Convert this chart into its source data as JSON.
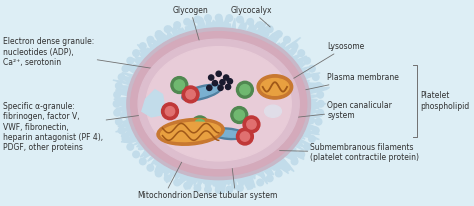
{
  "bg_color": "#ddeef5",
  "glycocalyx_color": "#c2dcea",
  "outer_ring_color": "#c8b8c8",
  "cell_body_color": "#d4aabb",
  "inner_zone_color": "#ddbece",
  "center_color": "#e8ccd8",
  "mito_outer": "#c87830",
  "mito_inner": "#e8a040",
  "mito_ridge": "#a05818",
  "dense_dot_color": "#1a1a2e",
  "red_granule": "#c03838",
  "green_granule_outer": "#508850",
  "green_granule_inner": "#70b870",
  "lysosome_outer": "#c87830",
  "lysosome_inner": "#e8a040",
  "blue_canal": "#5080a0",
  "white_body": "#e0dde8",
  "line_color": "#707070",
  "label_color": "#303030",
  "lfs": 5.5,
  "labels": {
    "glycogen": "Glycogen",
    "glycocalyx": "Glycocalyx",
    "electron_dense": "Electron dense granule:\nnucleotides (ADP),\nCa²⁺, serotonin",
    "specific_alpha": "Specific α-granule:\nfibrinogen, factor V,\nVWF, fibronectin,\nheparin antagonist (PF 4),\nPDGF, other proteins",
    "lysosome": "Lysosome",
    "plasma_membrane": "Plasma membrane",
    "platelet_phospholipid": "Platelet\nphospholipid",
    "open_canalicular": "Open canalicular\nsystem",
    "submembranous": "Submembranous filaments\n(platelet contractile protein)",
    "mitochondrion": "Mitochondrion",
    "dense_tubular": "Dense tubular system"
  }
}
